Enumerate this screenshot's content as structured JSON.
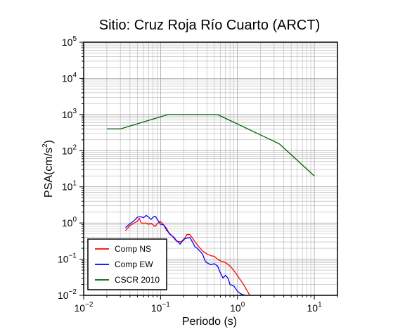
{
  "chart_data": {
    "type": "line",
    "title": "Sitio: Cruz Roja Río Cuarto (ARCT)",
    "xlabel": "Periodo (s)",
    "ylabel": {
      "base": "PSA(cm/s",
      "sup": "2",
      "tail": ")"
    },
    "xscale": "log",
    "yscale": "log",
    "xlim": [
      0.01,
      20
    ],
    "ylim": [
      0.01,
      100000
    ],
    "grid": true,
    "legend_position": "bottom-left",
    "x_ticks": [
      {
        "base": "10",
        "exp": "−2",
        "value": 0.01
      },
      {
        "base": "10",
        "exp": "−1",
        "value": 0.1
      },
      {
        "base": "10",
        "exp": "0",
        "value": 1
      },
      {
        "base": "10",
        "exp": "1",
        "value": 10
      }
    ],
    "y_ticks": [
      {
        "base": "10",
        "exp": "−2",
        "value": 0.01
      },
      {
        "base": "10",
        "exp": "−1",
        "value": 0.1
      },
      {
        "base": "10",
        "exp": "0",
        "value": 1
      },
      {
        "base": "10",
        "exp": "1",
        "value": 10
      },
      {
        "base": "10",
        "exp": "2",
        "value": 100
      },
      {
        "base": "10",
        "exp": "3",
        "value": 1000
      },
      {
        "base": "10",
        "exp": "4",
        "value": 10000
      },
      {
        "base": "10",
        "exp": "5",
        "value": 100000
      }
    ],
    "series": [
      {
        "name": "Comp NS",
        "color": "#ff0000",
        "points": [
          [
            0.035,
            0.62
          ],
          [
            0.04,
            0.85
          ],
          [
            0.045,
            0.98
          ],
          [
            0.05,
            1.12
          ],
          [
            0.053,
            1.35
          ],
          [
            0.056,
            1.0
          ],
          [
            0.06,
            0.98
          ],
          [
            0.065,
            1.0
          ],
          [
            0.07,
            0.92
          ],
          [
            0.075,
            0.98
          ],
          [
            0.08,
            0.88
          ],
          [
            0.085,
            0.8
          ],
          [
            0.09,
            0.95
          ],
          [
            0.1,
            1.1
          ],
          [
            0.11,
            0.88
          ],
          [
            0.12,
            0.62
          ],
          [
            0.14,
            0.45
          ],
          [
            0.16,
            0.32
          ],
          [
            0.18,
            0.3
          ],
          [
            0.2,
            0.33
          ],
          [
            0.22,
            0.48
          ],
          [
            0.24,
            0.48
          ],
          [
            0.26,
            0.38
          ],
          [
            0.3,
            0.25
          ],
          [
            0.35,
            0.17
          ],
          [
            0.4,
            0.14
          ],
          [
            0.45,
            0.125
          ],
          [
            0.5,
            0.12
          ],
          [
            0.55,
            0.1
          ],
          [
            0.6,
            0.09
          ],
          [
            0.7,
            0.08
          ],
          [
            0.8,
            0.065
          ],
          [
            0.9,
            0.048
          ],
          [
            1.0,
            0.035
          ],
          [
            1.2,
            0.02
          ],
          [
            1.45,
            0.01
          ]
        ]
      },
      {
        "name": "Comp EW",
        "color": "#0000ff",
        "points": [
          [
            0.035,
            0.75
          ],
          [
            0.04,
            0.95
          ],
          [
            0.045,
            1.15
          ],
          [
            0.05,
            1.45
          ],
          [
            0.055,
            1.5
          ],
          [
            0.06,
            1.4
          ],
          [
            0.065,
            1.62
          ],
          [
            0.07,
            1.45
          ],
          [
            0.075,
            1.25
          ],
          [
            0.08,
            1.45
          ],
          [
            0.085,
            1.55
          ],
          [
            0.09,
            1.3
          ],
          [
            0.1,
            0.92
          ],
          [
            0.11,
            0.88
          ],
          [
            0.12,
            0.7
          ],
          [
            0.13,
            0.5
          ],
          [
            0.15,
            0.4
          ],
          [
            0.16,
            0.33
          ],
          [
            0.18,
            0.26
          ],
          [
            0.2,
            0.36
          ],
          [
            0.22,
            0.38
          ],
          [
            0.24,
            0.4
          ],
          [
            0.26,
            0.3
          ],
          [
            0.28,
            0.22
          ],
          [
            0.3,
            0.2
          ],
          [
            0.35,
            0.14
          ],
          [
            0.38,
            0.09
          ],
          [
            0.4,
            0.08
          ],
          [
            0.45,
            0.07
          ],
          [
            0.5,
            0.075
          ],
          [
            0.55,
            0.065
          ],
          [
            0.6,
            0.042
          ],
          [
            0.65,
            0.03
          ],
          [
            0.7,
            0.036
          ],
          [
            0.75,
            0.03
          ],
          [
            0.8,
            0.02
          ],
          [
            0.9,
            0.018
          ],
          [
            1.0,
            0.013
          ],
          [
            1.1,
            0.011
          ],
          [
            1.25,
            0.01
          ]
        ]
      },
      {
        "name": "CSCR 2010",
        "color": "#006400",
        "points": [
          [
            0.02,
            400
          ],
          [
            0.03,
            400
          ],
          [
            0.125,
            1000
          ],
          [
            0.55,
            1000
          ],
          [
            3.5,
            155
          ],
          [
            10,
            20
          ]
        ]
      }
    ]
  }
}
